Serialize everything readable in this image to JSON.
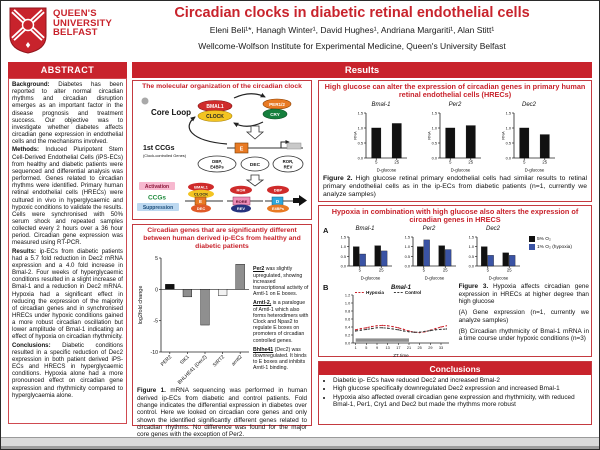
{
  "colors": {
    "accent": "#c8232c",
    "bar_black": "#111111",
    "bar_gray": "#8f8f8f",
    "bar_white": "#f2f2f2",
    "hypoxia_blue": "#3a53a4",
    "line_red": "#c8232c",
    "line_black": "#3a3a3a",
    "dark_phase_gray": "#8f8f8f"
  },
  "header": {
    "logo_line1": "QUEEN'S",
    "logo_line2": "UNIVERSITY",
    "logo_line3": "BELFAST",
    "title": "Circadian clocks in diabetic retinal endothelial cells",
    "authors": "Eleni Beli¹*, Hanagh Winter¹, David Hughes¹, Andriana Margariti¹, Alan Stitt¹",
    "affiliation": "Wellcome-Wolfson Institute for Experimental Medicine, Queen's University Belfast"
  },
  "results_banner": "Results",
  "abstract": {
    "heading": "ABSTRACT",
    "paragraphs": [
      {
        "label": "Background:",
        "text": "Diabetes has been reported to alter normal circadian rhythms and circadian disruption emerges as an important factor in the disease prognosis and treatment success. Our objective was to investigate whether diabetes affects circadian gene expression in endothelial cells and the mechanisms involved."
      },
      {
        "label": "Methods:",
        "text": "Induced Pluripotent Stem Cell-Derived Endothelial Cells (iPS-ECs) from healthy and diabetic patients were sequenced and differential analysis was performed. Genes related to circadian rhythms were identified. Primary human retinal endothelial cells (HRECs) were cultured in vivo in hyperglycaemic and hypoxic conditions to validate the results. Cells were synchronised with 50% serum shock and repeated samples collected every 2 hours over a 36 hour period. Circadian gene expression was measured using RT-PCR."
      },
      {
        "label": "Results:",
        "text": "ip-ECs from diabetic patients had a 5.7 fold reduction in Dec2 mRNA expression and a 4.0 fold increase in Bmal-2. Four weeks of hyperglycaemic conditions resulted in a slight increase of Bmal-1 and a reduction in Dec2 mRNA. Hypoxia had a significant effect in reducing the expression of the majority of circadian genes and in synchronised HRECs under hypoxic conditions gained a more robust circadian oscillation but lower amplitude of Bmal-1 indicating an effect of hypoxia on circadian rhythmicity."
      },
      {
        "label": "Conclusions:",
        "text": "Diabetic conditions resulted in a specific reduction of Dec2 expression in both patient derived iPS-ECs and HRECS in hyperglycaemic conditions. Hypoxia alone had a more pronounced effect on circadian gene expression and rhythmicity compared to hyperglycaemia alone."
      }
    ]
  },
  "clock_box": {
    "title": "The molecular organization of the circadian clock"
  },
  "diagram": {
    "core_loop": "Core Loop",
    "bmal1": "BMAL1",
    "clock": "CLOCK",
    "per": "PER1/2",
    "cry": "CRY",
    "first_ccgs": "1st CCGs",
    "first_ccgs_sub": "(Clock-controlled Genes)",
    "oval1_l1": "DBP,",
    "oval1_l2": "E4BPs",
    "oval2": "DEC",
    "oval3_l1": "ROR,",
    "oval3_l2": "REV",
    "activation": "Activation",
    "ccgs": "CCGs",
    "suppression": "Suppression",
    "ebox": "E",
    "rore": "RORE",
    "dbox": "D",
    "ror": "ROR",
    "rev": "REV",
    "dbp": "DBP",
    "e4bps": "E4BPs",
    "dec": "DEC"
  },
  "fig1": {
    "title": "Circadian genes that are significantly different between human derived ip-ECs from healthy and diabetic patients",
    "notes": [
      {
        "lead": "Per2",
        "text": " was slightly upregulated, showing increased transcriptional activity of Arntl-1 on E boxes."
      },
      {
        "lead": "Arntl-2,",
        "text": " is a paralogue of Arntl-1 which also forms heterodimers with Clock and Npas2 to regulate E boxes on promoters of circadian controlled genes."
      },
      {
        "lead": "Bhlhe41",
        "text": " (Dec2) was downregulated. It binds to E boxes and inhibits Arntl-1 binding."
      }
    ],
    "caption_lead": "Figure 1.",
    "caption_text": " mRNA sequencing was performed in human derived ip-ECs from diabetic and control patients. Fold change indicates the differential expression in diabetes over control. Here we looked on circadian core genes and only shown the identified significantly different genes related to circadian rhythms. No difference was found for the major core genes with the exception of Per2."
  },
  "fig2": {
    "title": "High glucose can alter the expression of circadian genes in primary human retinal endothelial cells (HRECs)",
    "caption_lead": "Figure 2.",
    "caption_text": " High glucose retinal primary endothelial cells had similar results to retinal primary endothelial cells as in the ip-ECs from diabetic patients (n=1, currently we analyze samples)"
  },
  "fig3": {
    "title": "Hypoxia in combination with high glucose also alters the expression of circadian genes in HRECS",
    "panel_a": "A",
    "panel_b": "B",
    "legend": [
      "5% O₂",
      "1% O₂ (hypoxia)"
    ],
    "caption_lead": "Figure 3.",
    "caption_text": " Hypoxia affects circadian gene expression in HRECs at higher degree than high glucose",
    "caption_a": "(A) Gene expression (n=1, currently we analyze samples)",
    "caption_b": "(B) Circadian rhythmicity of Bmal-1 mRNA in a time course under hypoxic conditions (n=3)"
  },
  "conclusions": {
    "heading": "Conclusions",
    "bullets": [
      "Diabetic ip- ECs have reduced Dec2 and increased Bmal-2",
      "High glucose specifically downregulated Dec2 expression and increased Bmal-1",
      "Hypoxia also affected overall circadian gene expression and rhythmicity, with reduced Bmal-1, Per1, Cry1 and Dec2 but made the rhythms more robust"
    ]
  },
  "chart_data": [
    {
      "id": "fig1-log2fold-change",
      "type": "bar",
      "categories": [
        "PER2",
        "SIK1",
        "BHLHE41 (Dec2)",
        "SIRT2",
        "arntl2"
      ],
      "values": [
        0.8,
        -1.2,
        -5.7,
        -1.0,
        4.0
      ],
      "bar_colors": [
        "#111111",
        "#8f8f8f",
        "#8f8f8f",
        "#f2f2f2",
        "#8f8f8f"
      ],
      "title": "",
      "xlabel": "",
      "ylabel": "log2fold change",
      "ylim": [
        -10,
        5
      ],
      "yticks": [
        5,
        0,
        -5,
        -10
      ],
      "rotate_labels": true
    },
    {
      "id": "fig2-bmal1",
      "type": "bar",
      "mini": true,
      "title": "Bmal-1",
      "categories": [
        "5",
        "25"
      ],
      "values": [
        1.0,
        1.15
      ],
      "bar_colors": [
        "#111111",
        "#111111"
      ],
      "xlabel": "D-glucose",
      "ylabel": "RNA",
      "ylim": [
        0,
        1.5
      ],
      "yticks": [
        0,
        0.5,
        1.0,
        1.5
      ],
      "ytick_decimals": 1
    },
    {
      "id": "fig2-per2",
      "type": "bar",
      "mini": true,
      "title": "Per2",
      "categories": [
        "5",
        "25"
      ],
      "values": [
        1.0,
        1.08
      ],
      "bar_colors": [
        "#111111",
        "#111111"
      ],
      "xlabel": "D-glucose",
      "ylabel": "RNA",
      "ylim": [
        0,
        1.5
      ],
      "yticks": [
        0,
        0.5,
        1.0,
        1.5
      ],
      "ytick_decimals": 1
    },
    {
      "id": "fig2-dec2",
      "type": "bar",
      "mini": true,
      "title": "Dec2",
      "categories": [
        "5",
        "25"
      ],
      "values": [
        1.0,
        0.78
      ],
      "bar_colors": [
        "#111111",
        "#111111"
      ],
      "xlabel": "D-glucose",
      "ylabel": "RNA",
      "ylim": [
        0,
        1.5
      ],
      "yticks": [
        0,
        0.5,
        1.0,
        1.5
      ],
      "ytick_decimals": 1
    },
    {
      "id": "fig3a-bmal1",
      "type": "grouped_bar",
      "mini": true,
      "title": "Bmal-1",
      "categories": [
        "5",
        "25"
      ],
      "xlabel": "D-glucose",
      "ylim": [
        0,
        1.5
      ],
      "yticks": [
        0,
        0.5,
        1.0,
        1.5
      ],
      "ytick_decimals": 1,
      "series": [
        {
          "name": "5% O₂",
          "color": "#111111",
          "values": [
            1.0,
            1.05
          ]
        },
        {
          "name": "1% O₂ (hypoxia)",
          "color": "#3a53a4",
          "values": [
            0.62,
            0.78
          ]
        }
      ]
    },
    {
      "id": "fig3a-per2",
      "type": "grouped_bar",
      "mini": true,
      "title": "Per2",
      "categories": [
        "5",
        "25"
      ],
      "xlabel": "D-glucose",
      "ylim": [
        0,
        1.5
      ],
      "yticks": [
        0,
        0.5,
        1.0,
        1.5
      ],
      "ytick_decimals": 1,
      "series": [
        {
          "name": "5% O₂",
          "color": "#111111",
          "values": [
            1.0,
            1.05
          ]
        },
        {
          "name": "1% O₂ (hypoxia)",
          "color": "#3a53a4",
          "values": [
            1.35,
            0.85
          ]
        }
      ]
    },
    {
      "id": "fig3a-dec2",
      "type": "grouped_bar",
      "mini": true,
      "title": "Dec2",
      "categories": [
        "5",
        "25"
      ],
      "xlabel": "D-glucose",
      "ylim": [
        0,
        1.5
      ],
      "yticks": [
        0,
        0.5,
        1.0,
        1.5
      ],
      "ytick_decimals": 1,
      "series": [
        {
          "name": "5% O₂",
          "color": "#111111",
          "values": [
            1.0,
            0.68
          ]
        },
        {
          "name": "1% O₂ (hypoxia)",
          "color": "#3a53a4",
          "values": [
            0.55,
            0.55
          ]
        }
      ]
    },
    {
      "id": "fig3b-bmal1-timecourse",
      "type": "line",
      "title": "Bmal-1",
      "xlabel": "ZT time",
      "xlim": [
        0,
        36
      ],
      "xticks": [
        1,
        5,
        9,
        13,
        17,
        21,
        25,
        29,
        33
      ],
      "ylim": [
        0,
        1.2
      ],
      "yticks": [
        0,
        0.2,
        0.4,
        0.6,
        0.8,
        1.0,
        1.2
      ],
      "ytick_decimals": 1,
      "dark_span": [
        1,
        21
      ],
      "series": [
        {
          "name": "Hypoxia",
          "color": "#c8232c",
          "x": [
            1,
            3,
            5,
            7,
            9,
            11,
            13,
            15,
            17,
            19,
            21,
            23,
            25,
            27,
            29,
            31,
            33,
            35
          ],
          "values": [
            0.33,
            0.36,
            0.38,
            0.41,
            0.43,
            0.44,
            0.43,
            0.41,
            0.38,
            0.34,
            0.3,
            0.27,
            0.26,
            0.28,
            0.32,
            0.36,
            0.4,
            0.43
          ]
        },
        {
          "name": "Control",
          "color": "#3a3a3a",
          "x": [
            1,
            3,
            5,
            7,
            9,
            11,
            13,
            15,
            17,
            19,
            21,
            23,
            25,
            27,
            29,
            31,
            33,
            35
          ],
          "values": [
            0.3,
            0.32,
            0.34,
            0.36,
            0.38,
            0.38,
            0.37,
            0.35,
            0.33,
            0.3,
            0.28,
            0.27,
            0.27,
            0.29,
            0.31,
            0.33,
            0.34,
            0.35
          ]
        }
      ]
    }
  ]
}
